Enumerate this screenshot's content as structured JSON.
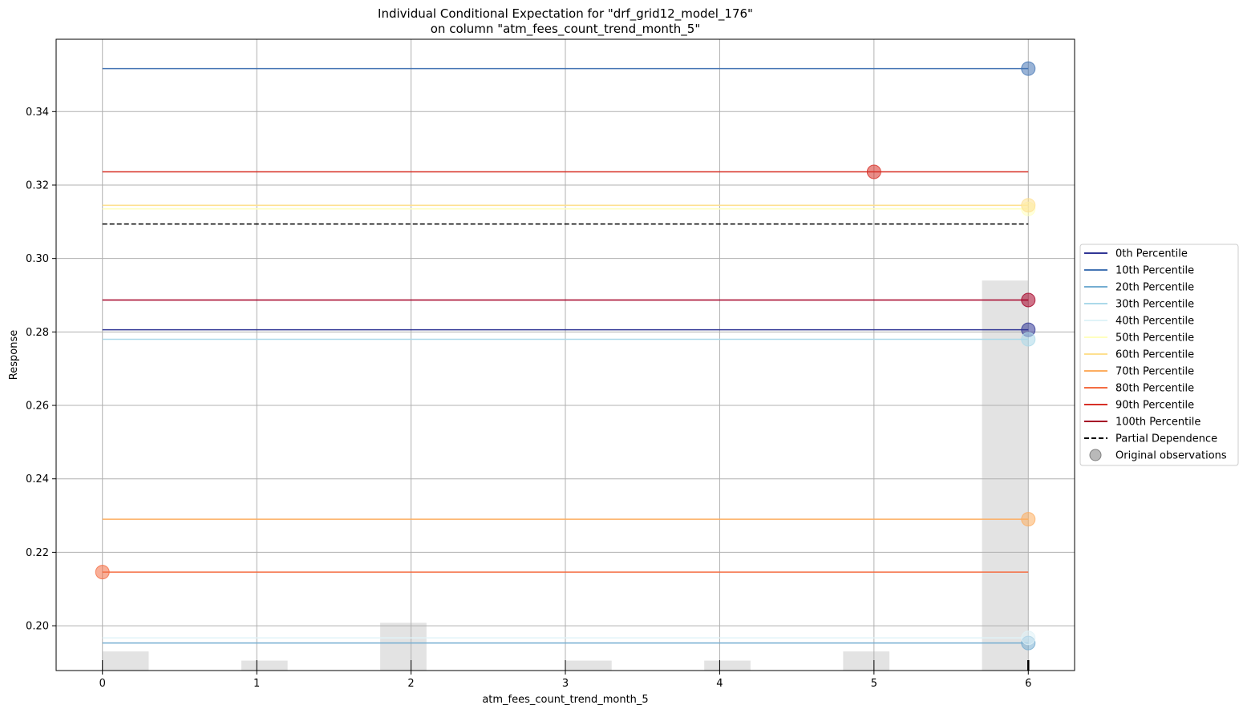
{
  "chart_data": {
    "type": "line",
    "title": "Individual Conditional Expectation for \"drf_grid12_model_176\"",
    "subtitle": "on column \"atm_fees_count_trend_month_5\"",
    "xlabel": "atm_fees_count_trend_month_5",
    "ylabel": "Response",
    "xlim": [
      -0.3,
      6.3
    ],
    "ylim": [
      0.1878,
      0.3597
    ],
    "x_ticks": [
      0,
      1,
      2,
      3,
      4,
      5,
      6
    ],
    "y_ticks": [
      0.2,
      0.22,
      0.24,
      0.26,
      0.28,
      0.3,
      0.32,
      0.34
    ],
    "grid": true,
    "legend_position": "right",
    "x": [
      0,
      1,
      2,
      3,
      4,
      5,
      6
    ],
    "series": [
      {
        "name": "0th Percentile",
        "color": "#313695",
        "values": [
          0.2806,
          0.2806,
          0.2806,
          0.2806,
          0.2806,
          0.2806,
          0.2806
        ],
        "observation": {
          "x": 6,
          "y": 0.2806
        }
      },
      {
        "name": "10th Percentile",
        "color": "#4575b4",
        "values": [
          0.3517,
          0.3517,
          0.3517,
          0.3517,
          0.3517,
          0.3517,
          0.3517
        ],
        "observation": {
          "x": 6,
          "y": 0.3517
        }
      },
      {
        "name": "20th Percentile",
        "color": "#74add1",
        "values": [
          0.1953,
          0.1953,
          0.1953,
          0.1953,
          0.1953,
          0.1953,
          0.1953
        ],
        "observation": {
          "x": 6,
          "y": 0.1953
        }
      },
      {
        "name": "30th Percentile",
        "color": "#abd9e9",
        "values": [
          0.278,
          0.278,
          0.278,
          0.278,
          0.278,
          0.278,
          0.278
        ],
        "observation": {
          "x": 6,
          "y": 0.278
        }
      },
      {
        "name": "40th Percentile",
        "color": "#e0f3f8",
        "values": [
          0.1967,
          0.1967,
          0.1967,
          0.1967,
          0.1967,
          0.1967,
          0.1967
        ],
        "observation": {
          "x": 6,
          "y": 0.1967
        }
      },
      {
        "name": "50th Percentile",
        "color": "#ffffbf",
        "values": [
          0.3135,
          0.3135,
          0.3135,
          0.3135,
          0.3135,
          0.3135,
          0.3135
        ],
        "observation": {
          "x": 6,
          "y": 0.3135
        }
      },
      {
        "name": "60th Percentile",
        "color": "#fee090",
        "values": [
          0.3145,
          0.3145,
          0.3145,
          0.3145,
          0.3145,
          0.3145,
          0.3145
        ],
        "observation": {
          "x": 6,
          "y": 0.3145
        }
      },
      {
        "name": "70th Percentile",
        "color": "#fdae61",
        "values": [
          0.229,
          0.229,
          0.229,
          0.229,
          0.229,
          0.229,
          0.229
        ],
        "observation": {
          "x": 6,
          "y": 0.229
        }
      },
      {
        "name": "80th Percentile",
        "color": "#f46d43",
        "values": [
          0.2146,
          0.2146,
          0.2146,
          0.2146,
          0.2146,
          0.2146,
          0.2146
        ],
        "observation": {
          "x": 0,
          "y": 0.2146
        }
      },
      {
        "name": "90th Percentile",
        "color": "#d73027",
        "values": [
          0.3236,
          0.3236,
          0.3236,
          0.3236,
          0.3236,
          0.3236,
          0.3236
        ],
        "observation": {
          "x": 5,
          "y": 0.3236
        }
      },
      {
        "name": "100th Percentile",
        "color": "#a50026",
        "values": [
          0.2887,
          0.2887,
          0.2887,
          0.2887,
          0.2887,
          0.2887,
          0.2887
        ],
        "observation": {
          "x": 6,
          "y": 0.2887
        }
      }
    ],
    "partial_dependence": {
      "name": "Partial Dependence",
      "color": "#000000",
      "style": "dashed",
      "values": [
        0.3094,
        0.3094,
        0.3094,
        0.3094,
        0.3094,
        0.3094,
        0.3094
      ]
    },
    "observations_legend": {
      "name": "Original observations",
      "color": "#7f7f7f"
    },
    "histogram": {
      "color": "#e3e3e3",
      "bins": [
        {
          "x0": 0.0,
          "x1": 0.3,
          "top": 0.193
        },
        {
          "x0": 0.9,
          "x1": 1.2,
          "top": 0.1905
        },
        {
          "x0": 1.8,
          "x1": 2.1,
          "top": 0.2008
        },
        {
          "x0": 3.0,
          "x1": 3.3,
          "top": 0.1905
        },
        {
          "x0": 3.9,
          "x1": 4.2,
          "top": 0.1905
        },
        {
          "x0": 4.8,
          "x1": 5.1,
          "top": 0.193
        },
        {
          "x0": 5.7,
          "x1": 6.0,
          "top": 0.294
        }
      ]
    },
    "rug_ticks": [
      0,
      1,
      2,
      3,
      4,
      5,
      6
    ]
  }
}
